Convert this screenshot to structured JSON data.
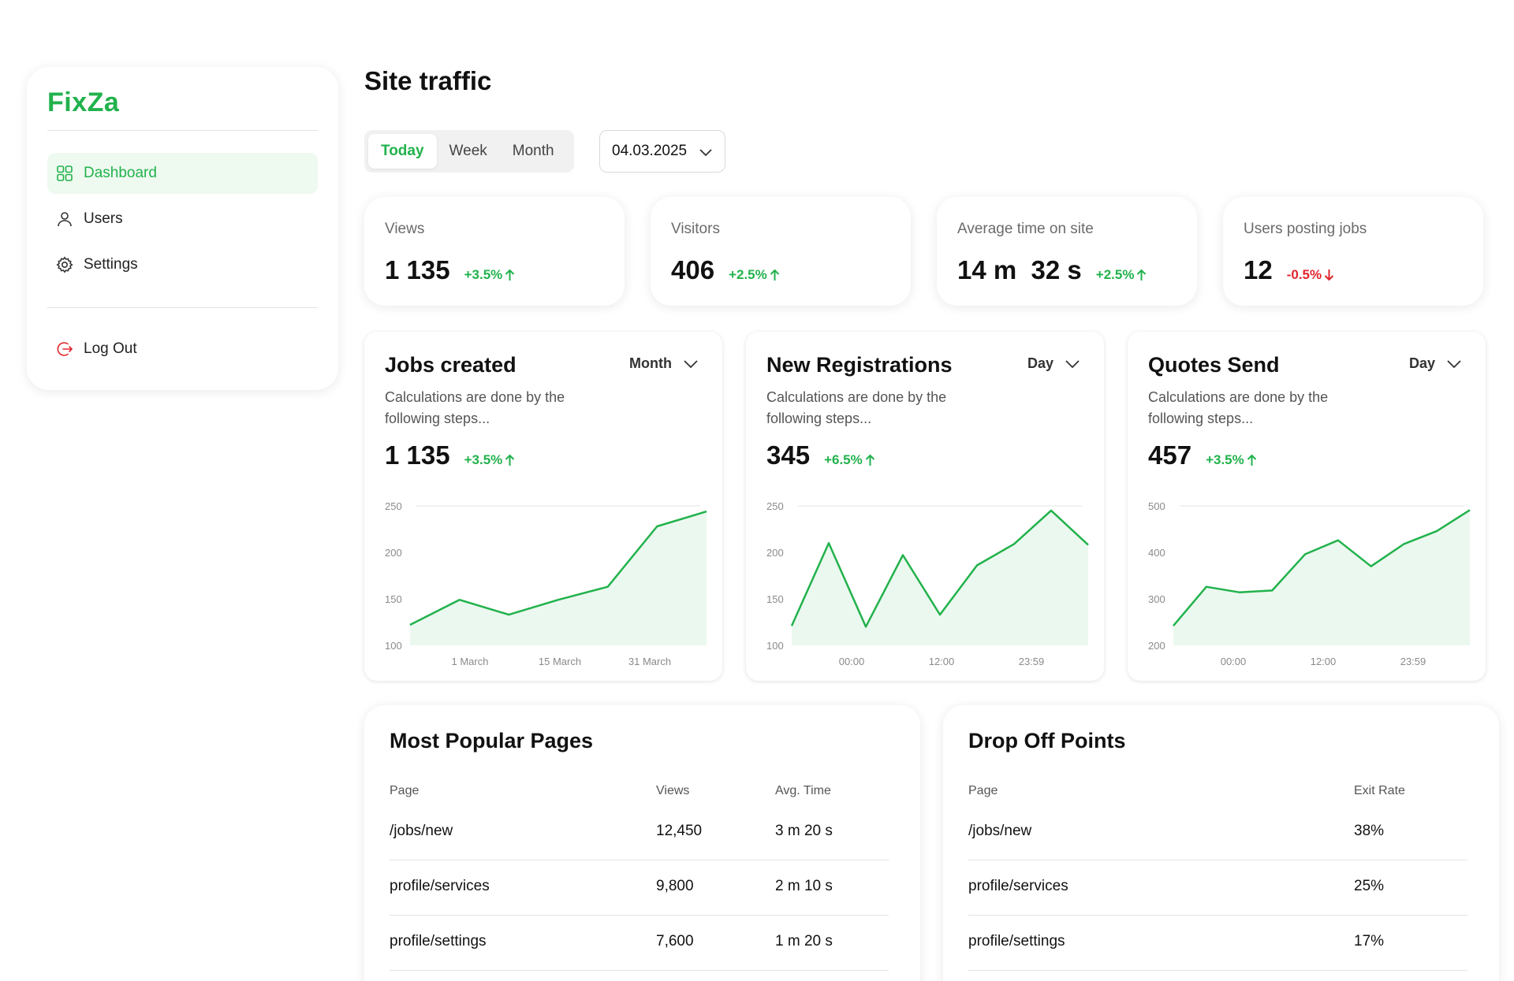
{
  "sidebar": {
    "logo": "FixZa",
    "items": [
      {
        "label": "Dashboard",
        "icon": "grid-icon",
        "active": true
      },
      {
        "label": "Users",
        "icon": "user-icon"
      },
      {
        "label": "Settings",
        "icon": "gear-icon"
      }
    ],
    "logout": {
      "label": "Log Out",
      "icon": "logout-icon"
    }
  },
  "header": {
    "title": "Site traffic",
    "periods": [
      "Today",
      "Week",
      "Month"
    ],
    "active_period": "Today",
    "date": "04.03.2025"
  },
  "stats": [
    {
      "label": "Views",
      "value": "1 135",
      "delta": "+3.5%",
      "direction": "up"
    },
    {
      "label": "Visitors",
      "value": "406",
      "delta": "+2.5%",
      "direction": "up"
    },
    {
      "label": "Average time on site",
      "value": "14 m  32 s",
      "delta": "+2.5%",
      "direction": "up"
    },
    {
      "label": "Users posting jobs",
      "value": "12",
      "delta": "-0.5%",
      "direction": "down"
    }
  ],
  "charts": [
    {
      "title": "Jobs created",
      "period": "Month",
      "desc": "Calculations are done by the following steps...",
      "total": "1 135",
      "delta": "+3.5%"
    },
    {
      "title": "New Registrations",
      "period": "Day",
      "desc": "Calculations are done by the following steps...",
      "total": "345",
      "delta": "+6.5%"
    },
    {
      "title": "Quotes Send",
      "period": "Day",
      "desc": "Calculations are done by the following steps...",
      "total": "457",
      "delta": "+3.5%"
    }
  ],
  "chart_data": [
    {
      "type": "area",
      "title": "Jobs created",
      "ylim": [
        100,
        250
      ],
      "y_ticks": [
        "250",
        "200",
        "150",
        "100"
      ],
      "x_ticks": [
        "1 March",
        "15 March",
        "31 March"
      ],
      "values": [
        122,
        149,
        133,
        149,
        163,
        228,
        244
      ]
    },
    {
      "type": "area",
      "title": "New Registrations",
      "ylim": [
        100,
        250
      ],
      "y_ticks": [
        "250",
        "200",
        "150",
        "100"
      ],
      "x_ticks": [
        "00:00",
        "12:00",
        "23:59"
      ],
      "values": [
        121,
        210,
        120,
        197,
        133,
        186,
        209,
        245,
        208
      ]
    },
    {
      "type": "area",
      "title": "Quotes Send",
      "ylim": [
        200,
        500
      ],
      "y_ticks": [
        "500",
        "400",
        "300",
        "200"
      ],
      "x_ticks": [
        "00:00",
        "12:00",
        "23:59"
      ],
      "values": [
        242,
        326,
        314,
        318,
        396,
        426,
        370,
        418,
        446,
        491
      ]
    }
  ],
  "popular_pages": {
    "title": "Most Popular Pages",
    "columns": [
      "Page",
      "Views",
      "Avg. Time"
    ],
    "rows": [
      [
        "/jobs/new",
        "12,450",
        "3 m 20 s"
      ],
      [
        "profile/services",
        "9,800",
        "2 m 10 s"
      ],
      [
        "profile/settings",
        "7,600",
        "1 m 20 s"
      ]
    ]
  },
  "drop_off": {
    "title": "Drop Off Points",
    "columns": [
      "Page",
      "Exit Rate"
    ],
    "rows": [
      [
        "/jobs/new",
        "38%"
      ],
      [
        "profile/services",
        "25%"
      ],
      [
        "profile/settings",
        "17%"
      ]
    ]
  },
  "colors": {
    "accent": "#22b24c",
    "negative": "#e0262e",
    "active_bg": "#eef9f0"
  }
}
